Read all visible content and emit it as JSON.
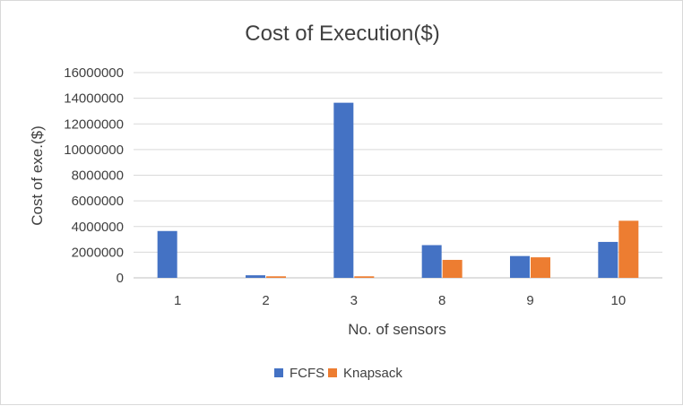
{
  "chart_data": {
    "type": "bar",
    "title": "Cost of Execution($)",
    "xlabel": "No. of sensors",
    "ylabel": "Cost of exe.($)",
    "categories": [
      "1",
      "2",
      "3",
      "8",
      "9",
      "10"
    ],
    "series": [
      {
        "name": "FCFS",
        "color": "#4472c4",
        "values": [
          3650000,
          200000,
          13650000,
          2550000,
          1700000,
          2800000
        ]
      },
      {
        "name": "Knapsack",
        "color": "#ed7d31",
        "values": [
          0,
          120000,
          120000,
          1400000,
          1600000,
          4450000
        ]
      }
    ],
    "ylim": [
      0,
      16000000
    ],
    "yticks": [
      "0",
      "2000000",
      "4000000",
      "6000000",
      "8000000",
      "10000000",
      "12000000",
      "14000000",
      "16000000"
    ],
    "grid": true,
    "legend": "bottom"
  }
}
